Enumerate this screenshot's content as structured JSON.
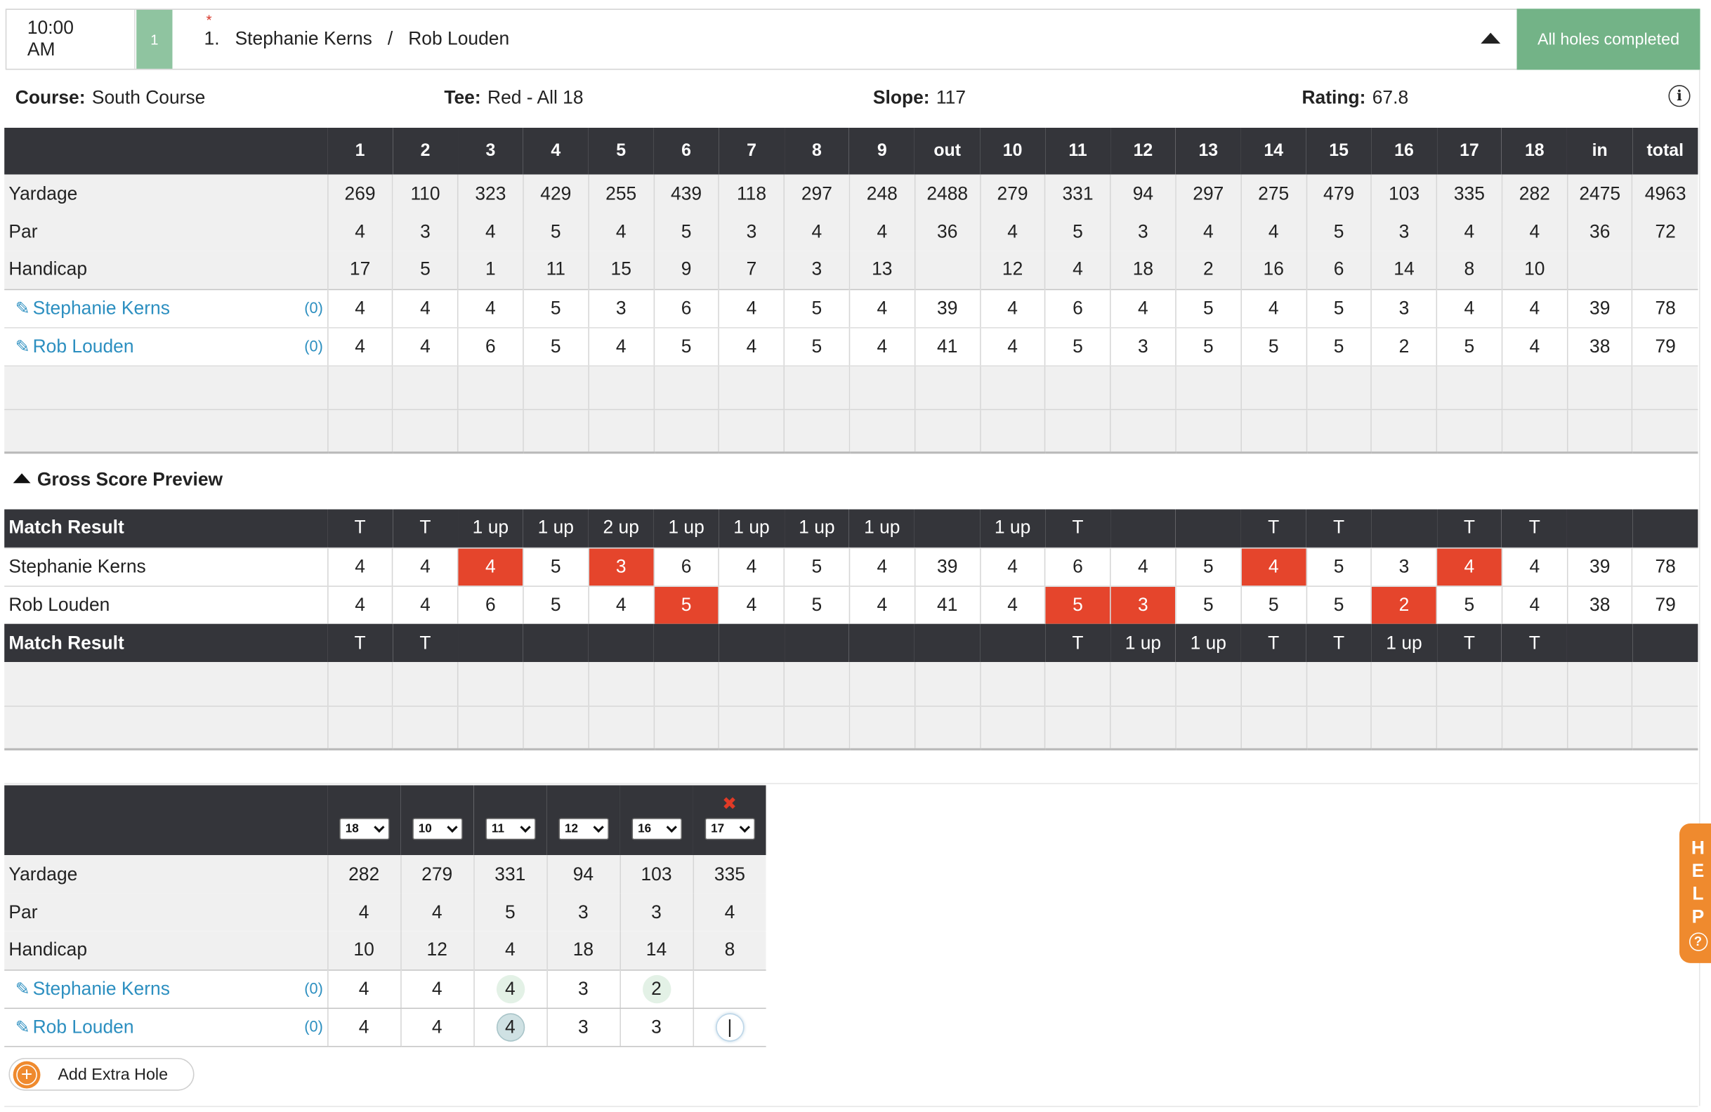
{
  "header": {
    "time": "10:00\nAM",
    "flight": "1",
    "required_mark": "*",
    "players_line": "1.   Stephanie Kerns   /   Rob Louden",
    "status": "All holes completed"
  },
  "course_info": {
    "course_label": "Course:",
    "course": "South Course",
    "tee_label": "Tee:",
    "tee": "Red - All 18",
    "slope_label": "Slope:",
    "slope": "117",
    "rating_label": "Rating:",
    "rating": "67.8",
    "info_icon": "info-icon"
  },
  "scorecard": {
    "columns": [
      "",
      "1",
      "2",
      "3",
      "4",
      "5",
      "6",
      "7",
      "8",
      "9",
      "out",
      "10",
      "11",
      "12",
      "13",
      "14",
      "15",
      "16",
      "17",
      "18",
      "in",
      "total"
    ],
    "rows": [
      {
        "label": "Yardage",
        "values": [
          "269",
          "110",
          "323",
          "429",
          "255",
          "439",
          "118",
          "297",
          "248",
          "2488",
          "279",
          "331",
          "94",
          "297",
          "275",
          "479",
          "103",
          "335",
          "282",
          "2475",
          "4963"
        ]
      },
      {
        "label": "Par",
        "values": [
          "4",
          "3",
          "4",
          "5",
          "4",
          "5",
          "3",
          "4",
          "4",
          "36",
          "4",
          "5",
          "3",
          "4",
          "4",
          "5",
          "3",
          "4",
          "4",
          "36",
          "72"
        ]
      },
      {
        "label": "Handicap",
        "values": [
          "17",
          "5",
          "1",
          "11",
          "15",
          "9",
          "7",
          "3",
          "13",
          "",
          "12",
          "4",
          "18",
          "2",
          "16",
          "6",
          "14",
          "8",
          "10",
          "",
          ""
        ]
      }
    ],
    "players": [
      {
        "name": "Stephanie Kerns",
        "handicap": "(0)",
        "scores": [
          "4",
          "4",
          "4",
          "5",
          "3",
          "6",
          "4",
          "5",
          "4",
          "39",
          "4",
          "6",
          "4",
          "5",
          "4",
          "5",
          "3",
          "4",
          "4",
          "39",
          "78"
        ]
      },
      {
        "name": "Rob Louden",
        "handicap": "(0)",
        "scores": [
          "4",
          "4",
          "6",
          "5",
          "4",
          "5",
          "4",
          "5",
          "4",
          "41",
          "4",
          "5",
          "3",
          "5",
          "5",
          "5",
          "2",
          "5",
          "4",
          "38",
          "79"
        ]
      }
    ],
    "edit_icon": "edit-icon"
  },
  "gross_preview": {
    "title": "Gross Score Preview",
    "match_result_label": "Match Result",
    "top_result": [
      "T",
      "T",
      "1 up",
      "1 up",
      "2 up",
      "1 up",
      "1 up",
      "1 up",
      "1 up",
      "",
      "1 up",
      "T",
      "",
      "",
      "T",
      "T",
      "",
      "T",
      "T",
      "",
      ""
    ],
    "players": [
      {
        "name": "Stephanie Kerns",
        "scores": [
          "4",
          "4",
          "4",
          "5",
          "3",
          "6",
          "4",
          "5",
          "4",
          "39",
          "4",
          "6",
          "4",
          "5",
          "4",
          "5",
          "3",
          "4",
          "4",
          "39",
          "78"
        ],
        "wins": [
          2,
          4,
          14,
          17
        ]
      },
      {
        "name": "Rob Louden",
        "scores": [
          "4",
          "4",
          "6",
          "5",
          "4",
          "5",
          "4",
          "5",
          "4",
          "41",
          "4",
          "5",
          "3",
          "5",
          "5",
          "5",
          "2",
          "5",
          "4",
          "38",
          "79"
        ],
        "wins": [
          5,
          11,
          12,
          16
        ]
      }
    ],
    "bottom_result": [
      "T",
      "T",
      "",
      "",
      "",
      "",
      "",
      "",
      "",
      "",
      "",
      "T",
      "1 up",
      "1 up",
      "T",
      "T",
      "1 up",
      "T",
      "T",
      "",
      ""
    ]
  },
  "extra_holes": {
    "selects": [
      "18",
      "10",
      "11",
      "12",
      "16",
      "17"
    ],
    "remove_mark": "✖",
    "rows": [
      {
        "label": "Yardage",
        "values": [
          "282",
          "279",
          "331",
          "94",
          "103",
          "335"
        ]
      },
      {
        "label": "Par",
        "values": [
          "4",
          "4",
          "5",
          "3",
          "3",
          "4"
        ]
      },
      {
        "label": "Handicap",
        "values": [
          "10",
          "12",
          "4",
          "18",
          "14",
          "8"
        ]
      }
    ],
    "players": [
      {
        "name": "Stephanie Kerns",
        "handicap": "(0)",
        "scores": [
          "4",
          "4",
          "4",
          "3",
          "2",
          ""
        ]
      },
      {
        "name": "Rob Louden",
        "handicap": "(0)",
        "scores": [
          "4",
          "4",
          "4",
          "3",
          "3",
          ""
        ]
      }
    ],
    "add_label": "Add Extra Hole"
  },
  "help": {
    "letters": [
      "H",
      "E",
      "L",
      "P"
    ],
    "q": "?"
  }
}
